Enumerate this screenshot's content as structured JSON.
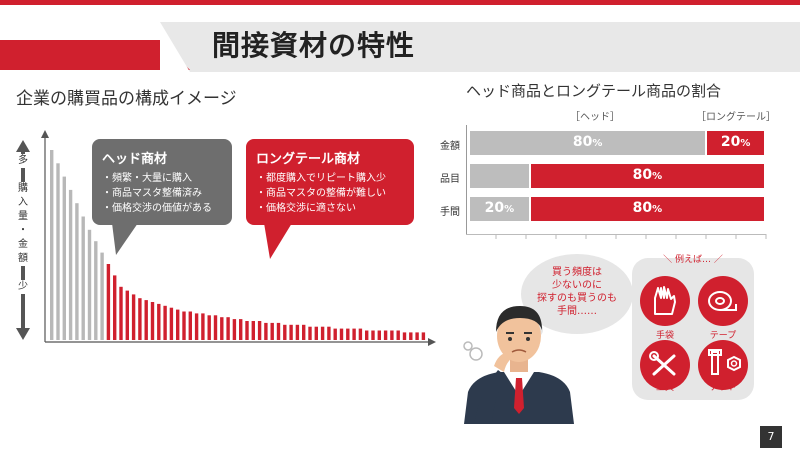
{
  "slide": {
    "title": "間接資材の特性",
    "page_number": "7"
  },
  "left": {
    "heading": "企業の購買品の構成イメージ",
    "axis_top": "多",
    "axis_middle": "購入量・金額",
    "axis_bottom": "少",
    "head_bubble": {
      "title": "ヘッド商材",
      "lines": [
        "・頻繁・大量に購入",
        "・商品マスタ整備済み",
        "・価格交渉の価値がある"
      ]
    },
    "long_bubble": {
      "title": "ロングテール商材",
      "lines": [
        "・都度購入でリピート購入少",
        "・商品マスタの整備が難しい",
        "・価格交渉に適さない"
      ]
    },
    "curve_values": [
      100,
      93,
      86,
      79,
      72,
      65,
      58,
      52,
      46,
      40,
      34,
      28,
      26,
      24,
      22,
      21,
      20,
      19,
      18,
      17,
      16,
      15,
      15,
      14,
      14,
      13,
      13,
      12,
      12,
      11,
      11,
      10,
      10,
      10,
      9,
      9,
      9,
      8,
      8,
      8,
      8,
      7,
      7,
      7,
      7,
      6,
      6,
      6,
      6,
      6,
      5,
      5,
      5,
      5,
      5,
      5,
      4,
      4,
      4,
      4
    ],
    "head_count": 9
  },
  "right": {
    "heading": "ヘッド商品とロングテール商品の割合",
    "legend_head": "［ヘッド］",
    "legend_long": "［ロングテール］",
    "colors": {
      "head": "#bdbdbd",
      "long": "#d0202e"
    },
    "rows": [
      {
        "label": "金額",
        "head": 80,
        "long": 20,
        "head_text": "80",
        "long_text": "20"
      },
      {
        "label": "品目",
        "head": 20,
        "long": 80,
        "head_text": "",
        "long_text": "80"
      },
      {
        "label": "手間",
        "head": 20,
        "long": 80,
        "head_text": "20",
        "long_text": "80"
      }
    ],
    "percent_unit": "%",
    "thought": [
      "買う頻度は",
      "少ないのに",
      "探すのも買うのも",
      "手間……"
    ],
    "examples_label": "＼ 例えば… ／",
    "examples": [
      {
        "icon": "glove-icon",
        "label": "手袋"
      },
      {
        "icon": "tape-icon",
        "label": "テープ"
      },
      {
        "icon": "tools-icon",
        "label": "工具"
      },
      {
        "icon": "nut-icon",
        "label": "ナット"
      }
    ]
  }
}
